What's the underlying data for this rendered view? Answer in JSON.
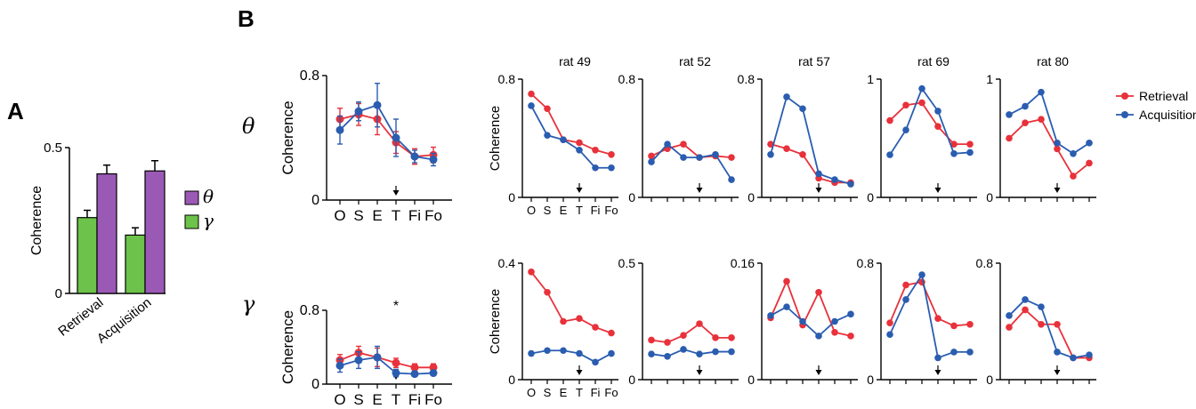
{
  "panel_labels": {
    "a": "A",
    "b": "B"
  },
  "colors": {
    "retrieval": "#e8313a",
    "acquisition": "#2a5db0",
    "gamma_bar": "#6cc24a",
    "theta_bar": "#9b59b6",
    "axis": "#000000"
  },
  "panel_a": {
    "ylabel": "Coherence",
    "legend": [
      {
        "symbol": "θ",
        "color": "#9b59b6"
      },
      {
        "symbol": "γ",
        "color": "#6cc24a"
      }
    ],
    "chart_data": {
      "type": "bar",
      "categories": [
        "Retrieval",
        "Acquisition"
      ],
      "series": [
        {
          "name": "γ",
          "values": [
            0.26,
            0.2
          ],
          "errors": [
            0.025,
            0.025
          ]
        },
        {
          "name": "θ",
          "values": [
            0.41,
            0.42
          ],
          "errors": [
            0.03,
            0.035
          ]
        }
      ],
      "ylim": [
        0,
        0.5
      ],
      "yticks": [
        "0",
        "0.5"
      ]
    }
  },
  "row_labels": {
    "theta": "θ",
    "gamma": "γ"
  },
  "x_categories": [
    "O",
    "S",
    "E",
    "T",
    "Fi",
    "Fo"
  ],
  "legend": {
    "retrieval": "Retrieval",
    "acquisition": "Acquisition"
  },
  "chart_data": [
    {
      "id": "mean-theta",
      "type": "line",
      "band": "θ",
      "ylabel": "Coherence",
      "ylim": [
        0,
        0.8
      ],
      "yticks": [
        "0",
        "0.8"
      ],
      "arrow_at": "T",
      "star": "",
      "series": [
        {
          "name": "Retrieval",
          "values": [
            0.52,
            0.55,
            0.52,
            0.37,
            0.28,
            0.29
          ],
          "errors": [
            0.07,
            0.07,
            0.1,
            0.07,
            0.05,
            0.05
          ]
        },
        {
          "name": "Acquisition",
          "values": [
            0.45,
            0.57,
            0.61,
            0.4,
            0.28,
            0.26
          ],
          "errors": [
            0.09,
            0.06,
            0.14,
            0.12,
            0.04,
            0.04
          ]
        }
      ]
    },
    {
      "id": "mean-gamma",
      "type": "line",
      "band": "γ",
      "ylabel": "Coherence",
      "ylim": [
        0,
        0.8
      ],
      "yticks": [
        "0",
        "0.8"
      ],
      "arrow_at": "T",
      "star": "*",
      "series": [
        {
          "name": "Retrieval",
          "values": [
            0.26,
            0.34,
            0.29,
            0.23,
            0.18,
            0.18
          ],
          "errors": [
            0.06,
            0.07,
            0.1,
            0.05,
            0.04,
            0.04
          ]
        },
        {
          "name": "Acquisition",
          "values": [
            0.2,
            0.26,
            0.29,
            0.12,
            0.11,
            0.12
          ],
          "errors": [
            0.07,
            0.09,
            0.12,
            0.04,
            0.02,
            0.02
          ]
        }
      ]
    },
    {
      "id": "rat49-theta",
      "type": "line",
      "title": "rat 49",
      "ylabel": "Coherence",
      "ylim": [
        0,
        0.8
      ],
      "yticks": [
        "0",
        "0.8"
      ],
      "show_xticks": true,
      "arrow_at": "T",
      "series": [
        {
          "name": "Retrieval",
          "values": [
            0.7,
            0.6,
            0.39,
            0.37,
            0.32,
            0.29
          ]
        },
        {
          "name": "Acquisition",
          "values": [
            0.62,
            0.42,
            0.39,
            0.32,
            0.2,
            0.2
          ]
        }
      ]
    },
    {
      "id": "rat52-theta",
      "type": "line",
      "title": "rat 52",
      "ylim": [
        0,
        0.8
      ],
      "yticks": [
        "0",
        "0.8"
      ],
      "arrow_at": "T",
      "series": [
        {
          "name": "Retrieval",
          "values": [
            0.28,
            0.33,
            0.36,
            0.27,
            0.28,
            0.27
          ]
        },
        {
          "name": "Acquisition",
          "values": [
            0.24,
            0.36,
            0.27,
            0.27,
            0.29,
            0.12
          ]
        }
      ]
    },
    {
      "id": "rat57-theta",
      "type": "line",
      "title": "rat 57",
      "ylim": [
        0,
        0.8
      ],
      "yticks": [
        "0",
        "0.8"
      ],
      "arrow_at": "T",
      "series": [
        {
          "name": "Retrieval",
          "values": [
            0.36,
            0.33,
            0.29,
            0.13,
            0.1,
            0.1
          ]
        },
        {
          "name": "Acquisition",
          "values": [
            0.29,
            0.68,
            0.6,
            0.16,
            0.12,
            0.09
          ]
        }
      ]
    },
    {
      "id": "rat69-theta",
      "type": "line",
      "title": "rat 69",
      "ylim": [
        0,
        1
      ],
      "yticks": [
        "0",
        "1"
      ],
      "arrow_at": "T",
      "series": [
        {
          "name": "Retrieval",
          "values": [
            0.65,
            0.78,
            0.8,
            0.6,
            0.45,
            0.45
          ]
        },
        {
          "name": "Acquisition",
          "values": [
            0.36,
            0.57,
            0.92,
            0.73,
            0.37,
            0.38
          ]
        }
      ]
    },
    {
      "id": "rat80-theta",
      "type": "line",
      "title": "rat 80",
      "ylim": [
        0,
        1
      ],
      "yticks": [
        "0",
        "1"
      ],
      "arrow_at": "T",
      "series": [
        {
          "name": "Retrieval",
          "values": [
            0.5,
            0.63,
            0.66,
            0.41,
            0.18,
            0.29
          ]
        },
        {
          "name": "Acquisition",
          "values": [
            0.7,
            0.77,
            0.89,
            0.46,
            0.37,
            0.46
          ]
        }
      ]
    },
    {
      "id": "rat49-gamma",
      "type": "line",
      "ylabel": "Coherence",
      "ylim": [
        0,
        0.4
      ],
      "yticks": [
        "0",
        "0.4"
      ],
      "show_xticks": true,
      "arrow_at": "T",
      "series": [
        {
          "name": "Retrieval",
          "values": [
            0.37,
            0.3,
            0.2,
            0.21,
            0.18,
            0.16
          ]
        },
        {
          "name": "Acquisition",
          "values": [
            0.09,
            0.1,
            0.1,
            0.09,
            0.06,
            0.09
          ]
        }
      ]
    },
    {
      "id": "rat52-gamma",
      "type": "line",
      "ylim": [
        0,
        0.5
      ],
      "yticks": [
        "0",
        "0.5"
      ],
      "arrow_at": "T",
      "series": [
        {
          "name": "Retrieval",
          "values": [
            0.17,
            0.16,
            0.19,
            0.24,
            0.18,
            0.18
          ]
        },
        {
          "name": "Acquisition",
          "values": [
            0.11,
            0.1,
            0.13,
            0.11,
            0.12,
            0.12
          ]
        }
      ]
    },
    {
      "id": "rat57-gamma",
      "type": "line",
      "ylim": [
        0,
        0.16
      ],
      "yticks": [
        "0",
        "0.16"
      ],
      "arrow_at": "T",
      "series": [
        {
          "name": "Retrieval",
          "values": [
            0.085,
            0.135,
            0.075,
            0.12,
            0.065,
            0.06
          ]
        },
        {
          "name": "Acquisition",
          "values": [
            0.088,
            0.1,
            0.08,
            0.06,
            0.08,
            0.09
          ]
        }
      ]
    },
    {
      "id": "rat69-gamma",
      "type": "line",
      "ylim": [
        0,
        0.8
      ],
      "yticks": [
        "0",
        "0.8"
      ],
      "arrow_at": "T",
      "series": [
        {
          "name": "Retrieval",
          "values": [
            0.39,
            0.65,
            0.67,
            0.42,
            0.37,
            0.38
          ]
        },
        {
          "name": "Acquisition",
          "values": [
            0.31,
            0.55,
            0.72,
            0.15,
            0.19,
            0.19
          ]
        }
      ]
    },
    {
      "id": "rat80-gamma",
      "type": "line",
      "ylim": [
        0,
        0.8
      ],
      "yticks": [
        "0",
        "0.8"
      ],
      "arrow_at": "T",
      "series": [
        {
          "name": "Retrieval",
          "values": [
            0.36,
            0.48,
            0.38,
            0.38,
            0.15,
            0.15
          ]
        },
        {
          "name": "Acquisition",
          "values": [
            0.44,
            0.55,
            0.5,
            0.19,
            0.15,
            0.17
          ]
        }
      ]
    }
  ]
}
